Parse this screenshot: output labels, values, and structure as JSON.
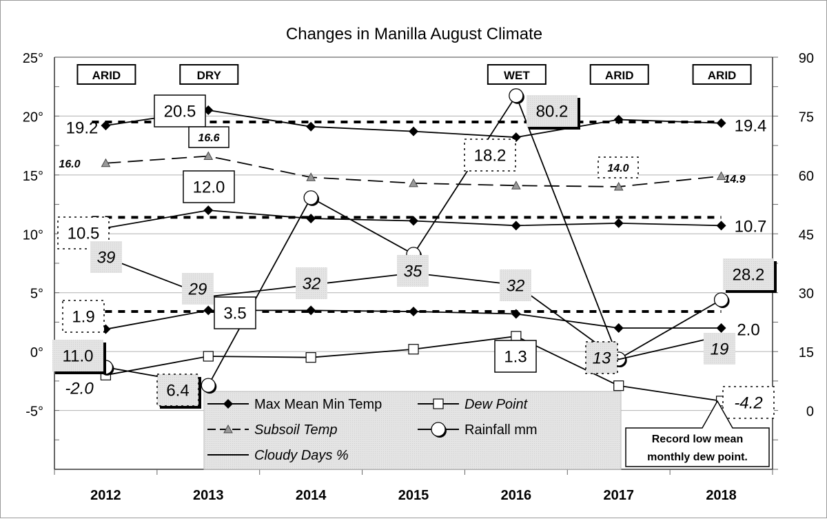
{
  "chart_data": {
    "type": "line",
    "title": "Changes in Manilla August Climate",
    "categories": [
      "2012",
      "2013",
      "2014",
      "2015",
      "2016",
      "2017",
      "2018"
    ],
    "y_left": {
      "range": [
        -10,
        25
      ],
      "ticks": [
        25,
        20,
        15,
        10,
        5,
        0,
        -5
      ],
      "tick_labels": [
        "25°",
        "20°",
        "15°",
        "10°",
        "5°",
        "0°",
        "-5°"
      ]
    },
    "y_right": {
      "range": [
        -15,
        90
      ],
      "ticks": [
        90,
        75,
        60,
        45,
        30,
        15,
        0
      ],
      "tick_labels": [
        "90",
        "75",
        "60",
        "45",
        "30",
        "15",
        "0"
      ]
    },
    "grid": true,
    "series": [
      {
        "name": "Max Mean Min Temp",
        "part": "max",
        "axis": "left",
        "values": [
          19.2,
          20.5,
          19.1,
          18.7,
          18.2,
          19.7,
          19.4
        ],
        "average": 19.5
      },
      {
        "name": "Max Mean Min Temp",
        "part": "mean",
        "axis": "left",
        "values": [
          10.5,
          12.0,
          11.3,
          11.1,
          10.7,
          10.9,
          10.7
        ],
        "average": 11.4
      },
      {
        "name": "Max Mean Min Temp",
        "part": "min",
        "axis": "left",
        "values": [
          1.9,
          3.5,
          3.5,
          3.4,
          3.2,
          2.0,
          2.0
        ],
        "average": 3.4
      },
      {
        "name": "Subsoil Temp",
        "axis": "left",
        "values": [
          16.0,
          16.6,
          14.8,
          14.3,
          14.1,
          14.0,
          14.9
        ]
      },
      {
        "name": "Dew Point",
        "axis": "left",
        "values": [
          -2.0,
          -0.4,
          -0.5,
          0.2,
          1.3,
          -2.9,
          -4.2
        ]
      },
      {
        "name": "Rainfall mm",
        "axis": "right",
        "values": [
          11.0,
          6.4,
          54.2,
          39.8,
          80.2,
          13.1,
          28.2
        ]
      },
      {
        "name": "Cloudy Days %",
        "axis": "right",
        "values": [
          39,
          29,
          32,
          35,
          32,
          13,
          19
        ]
      }
    ],
    "legend": {
      "placement": "bottom-center",
      "entries": [
        "Max Mean Min Temp",
        "Dew Point",
        "Subsoil Temp",
        "Rainfall mm",
        "Cloudy Days %"
      ]
    },
    "climate_tags": [
      {
        "year": "2012",
        "text": "ARID"
      },
      {
        "year": "2013",
        "text": "DRY"
      },
      {
        "year": "2016",
        "text": "WET"
      },
      {
        "year": "2017",
        "text": "ARID"
      },
      {
        "year": "2018",
        "text": "ARID"
      }
    ],
    "data_labels": [
      {
        "text": "19.2",
        "style": "plain"
      },
      {
        "text": "20.5",
        "style": "box"
      },
      {
        "text": "16.6",
        "style": "box-bi"
      },
      {
        "text": "16.0",
        "style": "bi"
      },
      {
        "text": "12.0",
        "style": "box"
      },
      {
        "text": "10.5",
        "style": "dotted"
      },
      {
        "text": "39",
        "style": "gray-i"
      },
      {
        "text": "29",
        "style": "gray-i"
      },
      {
        "text": "32",
        "style": "gray-i"
      },
      {
        "text": "35",
        "style": "gray-i"
      },
      {
        "text": "32",
        "style": "gray-i"
      },
      {
        "text": "13",
        "style": "gray-dotted-i"
      },
      {
        "text": "19",
        "style": "gray-i"
      },
      {
        "text": "1.9",
        "style": "dotted"
      },
      {
        "text": "3.5",
        "style": "box"
      },
      {
        "text": "11.0",
        "style": "gray-shadow"
      },
      {
        "text": "-2.0",
        "style": "italic"
      },
      {
        "text": "6.4",
        "style": "gray-dotted-shadow"
      },
      {
        "text": "18.2",
        "style": "dotted"
      },
      {
        "text": "80.2",
        "style": "gray-shadow"
      },
      {
        "text": "14.0",
        "style": "dotted-bi"
      },
      {
        "text": "14.9",
        "style": "bi"
      },
      {
        "text": "19.4",
        "style": "plain"
      },
      {
        "text": "10.7",
        "style": "plain"
      },
      {
        "text": "2.0",
        "style": "plain"
      },
      {
        "text": "1.3",
        "style": "box"
      },
      {
        "text": "-4.2",
        "style": "dotted-i"
      },
      {
        "text": "28.2",
        "style": "gray-shadow"
      }
    ],
    "annotation_lines": [
      "Record low mean",
      "monthly dew point."
    ]
  }
}
